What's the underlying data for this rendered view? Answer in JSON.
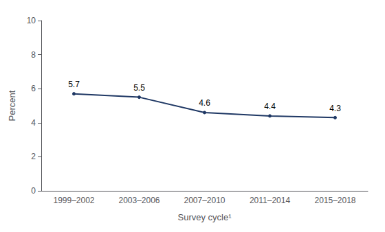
{
  "chart_data": {
    "type": "line",
    "categories": [
      "1999–2002",
      "2003–2006",
      "2007–2010",
      "2011–2014",
      "2015–2018"
    ],
    "values": [
      5.7,
      5.5,
      4.6,
      4.4,
      4.3
    ],
    "color": "#1f3864",
    "xlabel": "Survey cycle¹",
    "ylabel": "Percent",
    "ylim": [
      0,
      10
    ],
    "yticks": [
      0,
      2,
      4,
      6,
      8,
      10
    ],
    "grid": false,
    "data_labels": true
  }
}
